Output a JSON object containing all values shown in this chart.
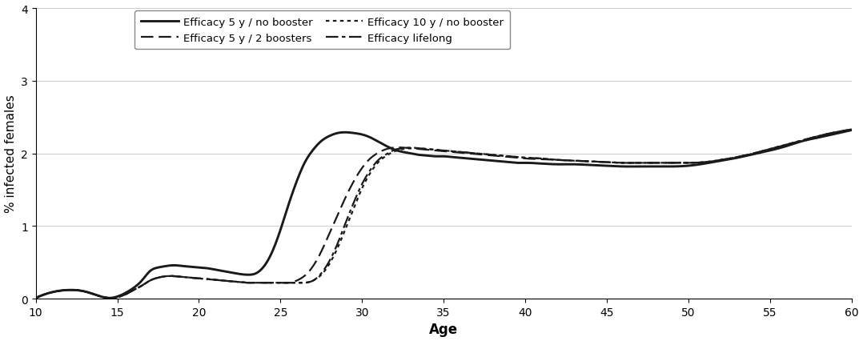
{
  "title": "",
  "xlabel": "Age",
  "ylabel": "% infected females",
  "xlim": [
    10,
    60
  ],
  "ylim": [
    0,
    4
  ],
  "yticks": [
    0,
    1,
    2,
    3,
    4
  ],
  "xticks": [
    10,
    15,
    20,
    25,
    30,
    35,
    40,
    45,
    50,
    55,
    60
  ],
  "background_color": "#ffffff",
  "color": "#1a1a1a",
  "linewidth": 1.6,
  "curve1_label": "Efficacy 5 y / no booster",
  "curve1_x": [
    10,
    11,
    12,
    13,
    14,
    14.5,
    15,
    15.5,
    16,
    16.5,
    17,
    17.5,
    18,
    18.5,
    19,
    19.5,
    20,
    20.5,
    21,
    21.5,
    22,
    22.5,
    23,
    23.5,
    24,
    24.5,
    25,
    25.5,
    26,
    26.5,
    27,
    27.5,
    28,
    28.5,
    29,
    29.5,
    30,
    30.5,
    31,
    31.5,
    32,
    32.5,
    33,
    33.5,
    34,
    34.5,
    35,
    35.5,
    36,
    36.5,
    37,
    37.5,
    38,
    38.5,
    39,
    39.5,
    40,
    41,
    42,
    43,
    44,
    45,
    46,
    47,
    48,
    49,
    50,
    51,
    52,
    53,
    54,
    55,
    56,
    57,
    58,
    59,
    60
  ],
  "curve1_y": [
    0.01,
    0.09,
    0.12,
    0.1,
    0.03,
    0.01,
    0.03,
    0.08,
    0.15,
    0.25,
    0.38,
    0.43,
    0.45,
    0.46,
    0.45,
    0.44,
    0.43,
    0.42,
    0.4,
    0.38,
    0.36,
    0.34,
    0.33,
    0.35,
    0.45,
    0.65,
    0.95,
    1.3,
    1.62,
    1.88,
    2.05,
    2.17,
    2.24,
    2.28,
    2.29,
    2.28,
    2.26,
    2.22,
    2.16,
    2.1,
    2.05,
    2.02,
    2.0,
    1.98,
    1.97,
    1.96,
    1.96,
    1.95,
    1.94,
    1.93,
    1.92,
    1.91,
    1.9,
    1.89,
    1.88,
    1.87,
    1.87,
    1.86,
    1.85,
    1.85,
    1.84,
    1.83,
    1.82,
    1.82,
    1.82,
    1.82,
    1.83,
    1.86,
    1.9,
    1.94,
    1.99,
    2.04,
    2.1,
    2.17,
    2.22,
    2.27,
    2.32
  ],
  "curve2_label": "Efficacy 5 y / 2 boosters",
  "curve2_x": [
    10,
    11,
    12,
    13,
    14,
    14.5,
    15,
    15.5,
    16,
    16.5,
    17,
    17.5,
    18,
    18.5,
    19,
    19.5,
    20,
    20.5,
    21,
    21.5,
    22,
    22.5,
    23,
    23.5,
    24,
    24.5,
    25,
    25.5,
    26,
    26.5,
    27,
    27.5,
    28,
    28.5,
    29,
    29.5,
    30,
    30.5,
    31,
    31.5,
    32,
    32.5,
    33,
    33.5,
    34,
    34.5,
    35,
    35.5,
    36,
    36.5,
    37,
    37.5,
    38,
    38.5,
    39,
    39.5,
    40,
    41,
    42,
    43,
    44,
    45,
    46,
    47,
    48,
    49,
    50,
    51,
    52,
    53,
    54,
    55,
    56,
    57,
    58,
    59,
    60
  ],
  "curve2_y": [
    0.01,
    0.09,
    0.12,
    0.1,
    0.03,
    0.01,
    0.02,
    0.06,
    0.12,
    0.18,
    0.25,
    0.29,
    0.31,
    0.31,
    0.3,
    0.29,
    0.28,
    0.27,
    0.26,
    0.25,
    0.24,
    0.23,
    0.22,
    0.22,
    0.22,
    0.22,
    0.22,
    0.22,
    0.25,
    0.32,
    0.45,
    0.65,
    0.9,
    1.15,
    1.4,
    1.62,
    1.8,
    1.93,
    2.01,
    2.06,
    2.08,
    2.08,
    2.07,
    2.06,
    2.05,
    2.04,
    2.03,
    2.02,
    2.01,
    2.0,
    1.99,
    1.98,
    1.97,
    1.96,
    1.95,
    1.94,
    1.93,
    1.92,
    1.91,
    1.9,
    1.89,
    1.88,
    1.87,
    1.87,
    1.87,
    1.87,
    1.87,
    1.88,
    1.91,
    1.95,
    2.0,
    2.06,
    2.12,
    2.18,
    2.24,
    2.29,
    2.33
  ],
  "curve3_label": "Efficacy 10 y / no booster",
  "curve3_x": [
    10,
    11,
    12,
    13,
    14,
    14.5,
    15,
    15.5,
    16,
    16.5,
    17,
    17.5,
    18,
    18.5,
    19,
    19.5,
    20,
    20.5,
    21,
    21.5,
    22,
    22.5,
    23,
    23.5,
    24,
    24.5,
    25,
    25.5,
    26,
    26.5,
    27,
    27.5,
    28,
    28.5,
    29,
    29.5,
    30,
    30.5,
    31,
    31.5,
    32,
    32.5,
    33,
    33.5,
    34,
    34.5,
    35,
    35.5,
    36,
    36.5,
    37,
    37.5,
    38,
    38.5,
    39,
    39.5,
    40,
    41,
    42,
    43,
    44,
    45,
    46,
    47,
    48,
    49,
    50,
    51,
    52,
    53,
    54,
    55,
    56,
    57,
    58,
    59,
    60
  ],
  "curve3_y": [
    0.01,
    0.09,
    0.12,
    0.1,
    0.03,
    0.01,
    0.02,
    0.06,
    0.12,
    0.18,
    0.25,
    0.29,
    0.31,
    0.31,
    0.3,
    0.29,
    0.28,
    0.27,
    0.26,
    0.25,
    0.24,
    0.23,
    0.22,
    0.22,
    0.22,
    0.22,
    0.22,
    0.22,
    0.22,
    0.22,
    0.25,
    0.33,
    0.48,
    0.7,
    0.97,
    1.25,
    1.52,
    1.73,
    1.88,
    1.97,
    2.03,
    2.06,
    2.07,
    2.07,
    2.06,
    2.05,
    2.04,
    2.03,
    2.02,
    2.01,
    2.0,
    1.99,
    1.98,
    1.97,
    1.96,
    1.95,
    1.94,
    1.93,
    1.91,
    1.9,
    1.89,
    1.88,
    1.87,
    1.87,
    1.87,
    1.87,
    1.87,
    1.88,
    1.91,
    1.95,
    2.0,
    2.06,
    2.12,
    2.18,
    2.24,
    2.29,
    2.33
  ],
  "curve4_label": "Efficacy lifelong",
  "curve4_x": [
    10,
    11,
    12,
    13,
    14,
    14.5,
    15,
    15.5,
    16,
    16.5,
    17,
    17.5,
    18,
    18.5,
    19,
    19.5,
    20,
    20.5,
    21,
    21.5,
    22,
    22.5,
    23,
    23.5,
    24,
    24.5,
    25,
    25.5,
    26,
    26.5,
    27,
    27.5,
    28,
    28.5,
    29,
    29.5,
    30,
    30.5,
    31,
    31.5,
    32,
    32.5,
    33,
    33.5,
    34,
    34.5,
    35,
    35.5,
    36,
    36.5,
    37,
    37.5,
    38,
    38.5,
    39,
    39.5,
    40,
    41,
    42,
    43,
    44,
    45,
    46,
    47,
    48,
    49,
    50,
    51,
    52,
    53,
    54,
    55,
    56,
    57,
    58,
    59,
    60
  ],
  "curve4_y": [
    0.01,
    0.09,
    0.12,
    0.1,
    0.03,
    0.01,
    0.02,
    0.06,
    0.12,
    0.18,
    0.25,
    0.29,
    0.31,
    0.31,
    0.3,
    0.29,
    0.28,
    0.27,
    0.26,
    0.25,
    0.24,
    0.23,
    0.22,
    0.22,
    0.22,
    0.22,
    0.22,
    0.22,
    0.22,
    0.22,
    0.25,
    0.35,
    0.52,
    0.76,
    1.05,
    1.33,
    1.58,
    1.77,
    1.91,
    1.99,
    2.05,
    2.07,
    2.08,
    2.07,
    2.06,
    2.05,
    2.04,
    2.03,
    2.02,
    2.01,
    2.0,
    1.99,
    1.98,
    1.97,
    1.96,
    1.95,
    1.94,
    1.93,
    1.91,
    1.9,
    1.89,
    1.88,
    1.87,
    1.87,
    1.87,
    1.87,
    1.87,
    1.88,
    1.91,
    1.95,
    2.0,
    2.06,
    2.12,
    2.18,
    2.24,
    2.29,
    2.33
  ]
}
